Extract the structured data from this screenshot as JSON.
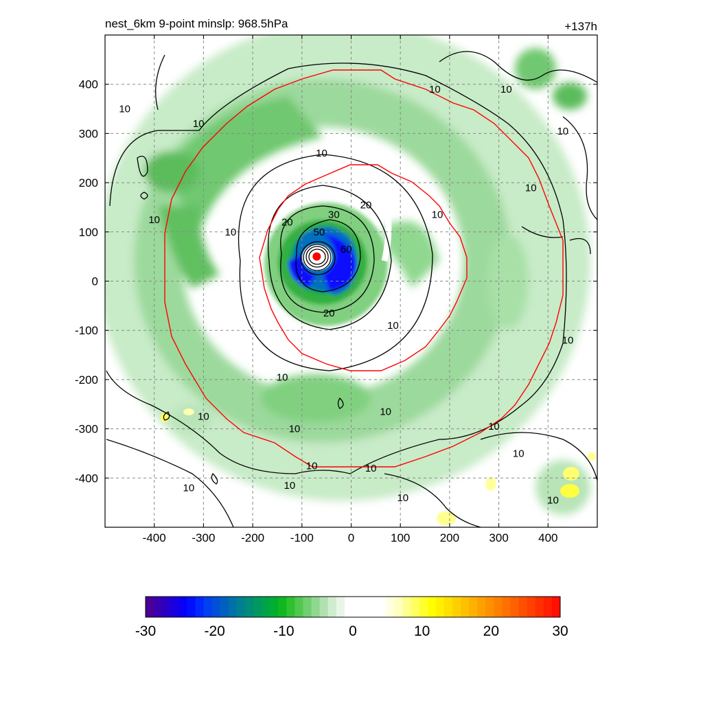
{
  "chart_data": {
    "type": "heatmap",
    "title_left": "nest_6km  9-point minslp: 968.5hPa",
    "title_right": "+137h",
    "xlim": [
      -500,
      500
    ],
    "ylim": [
      -500,
      500
    ],
    "x_ticks": [
      -400,
      -300,
      -200,
      -100,
      0,
      100,
      200,
      300,
      400
    ],
    "y_ticks": [
      400,
      300,
      200,
      100,
      0,
      -100,
      -200,
      -300,
      -400
    ],
    "grid": true,
    "center_marker": {
      "x": -70,
      "y": 50,
      "color": "#ff0000"
    },
    "contour_labels": [
      {
        "text": "10",
        "x": -460,
        "y": 350
      },
      {
        "text": "10",
        "x": -310,
        "y": 320
      },
      {
        "text": "10",
        "x": -400,
        "y": 125
      },
      {
        "text": "10",
        "x": -245,
        "y": 100
      },
      {
        "text": "10",
        "x": -60,
        "y": 260
      },
      {
        "text": "10",
        "x": 170,
        "y": 390
      },
      {
        "text": "10",
        "x": 315,
        "y": 390
      },
      {
        "text": "10",
        "x": 430,
        "y": 305
      },
      {
        "text": "10",
        "x": 365,
        "y": 190
      },
      {
        "text": "10",
        "x": 175,
        "y": 135
      },
      {
        "text": "10",
        "x": 85,
        "y": -90
      },
      {
        "text": "10",
        "x": -140,
        "y": -195
      },
      {
        "text": "10",
        "x": -300,
        "y": -275
      },
      {
        "text": "10",
        "x": -115,
        "y": -300
      },
      {
        "text": "10",
        "x": 70,
        "y": -265
      },
      {
        "text": "10",
        "x": -80,
        "y": -375
      },
      {
        "text": "10",
        "x": 40,
        "y": -380
      },
      {
        "text": "10",
        "x": -125,
        "y": -415
      },
      {
        "text": "10",
        "x": -330,
        "y": -420
      },
      {
        "text": "10",
        "x": 105,
        "y": -440
      },
      {
        "text": "10",
        "x": 290,
        "y": -295
      },
      {
        "text": "10",
        "x": 340,
        "y": -350
      },
      {
        "text": "10",
        "x": 410,
        "y": -445
      },
      {
        "text": "10",
        "x": 440,
        "y": -120
      },
      {
        "text": "20",
        "x": -130,
        "y": 120
      },
      {
        "text": "20",
        "x": 30,
        "y": 155
      },
      {
        "text": "20",
        "x": -45,
        "y": -65
      },
      {
        "text": "30",
        "x": -35,
        "y": 135
      },
      {
        "text": "50",
        "x": -65,
        "y": 100
      },
      {
        "text": "60",
        "x": -10,
        "y": 65
      }
    ]
  },
  "colorbar": {
    "min": -30,
    "max": 30,
    "tick_labels": [
      "-30",
      "-20",
      "-10",
      "0",
      "10",
      "20",
      "30"
    ],
    "colors": [
      "#4b0096",
      "#3a00b0",
      "#2a00c8",
      "#1a00e0",
      "#0a00f5",
      "#0010ff",
      "#0028ff",
      "#0040f0",
      "#0050d8",
      "#0060c0",
      "#0070a8",
      "#007f90",
      "#008c78",
      "#009860",
      "#00a448",
      "#00ae30",
      "#10b820",
      "#30c030",
      "#50c850",
      "#70d070",
      "#90d890",
      "#b0e2b0",
      "#d0ecd0",
      "#e8f6e8",
      "#ffffff",
      "#ffffff",
      "#ffffff",
      "#ffffff",
      "#ffffff",
      "#ffffe0",
      "#ffffc0",
      "#ffff90",
      "#ffff60",
      "#ffff30",
      "#ffff00",
      "#fff000",
      "#ffe000",
      "#ffd000",
      "#ffc000",
      "#ffb000",
      "#ffa000",
      "#ff9000",
      "#ff8000",
      "#ff7000",
      "#ff6000",
      "#ff5000",
      "#ff4000",
      "#ff3000",
      "#ff2000",
      "#ff1000"
    ]
  }
}
